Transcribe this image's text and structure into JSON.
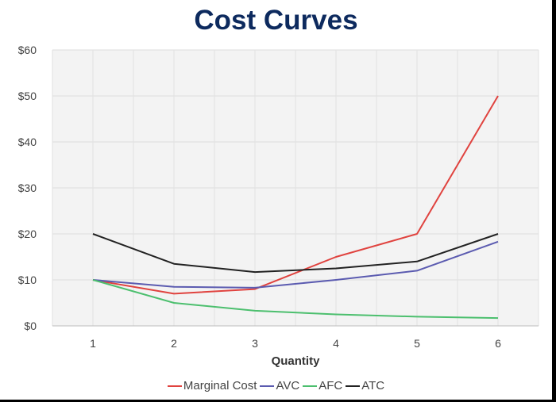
{
  "chart_data": {
    "type": "line",
    "title": "Cost Curves",
    "xlabel": "Quantity",
    "ylabel": "",
    "x": [
      1,
      2,
      3,
      4,
      5,
      6
    ],
    "ylim": [
      0,
      60
    ],
    "yticks": [
      "$0",
      "$10",
      "$20",
      "$30",
      "$40",
      "$50",
      "$60"
    ],
    "ytick_values": [
      0,
      10,
      20,
      30,
      40,
      50,
      60
    ],
    "xticks": [
      "1",
      "2",
      "3",
      "4",
      "5",
      "6"
    ],
    "grid": true,
    "legend_position": "bottom",
    "series": [
      {
        "name": "Marginal Cost",
        "color": "#e0433f",
        "values": [
          10,
          7,
          8,
          15,
          20,
          50
        ]
      },
      {
        "name": "AVC",
        "color": "#5b5bb0",
        "values": [
          10,
          8.5,
          8.3,
          10,
          12,
          18.3
        ]
      },
      {
        "name": "AFC",
        "color": "#4cbf6e",
        "values": [
          10,
          5,
          3.3,
          2.5,
          2,
          1.7
        ]
      },
      {
        "name": "ATC",
        "color": "#222222",
        "values": [
          20,
          13.5,
          11.7,
          12.5,
          14,
          20
        ]
      }
    ]
  }
}
